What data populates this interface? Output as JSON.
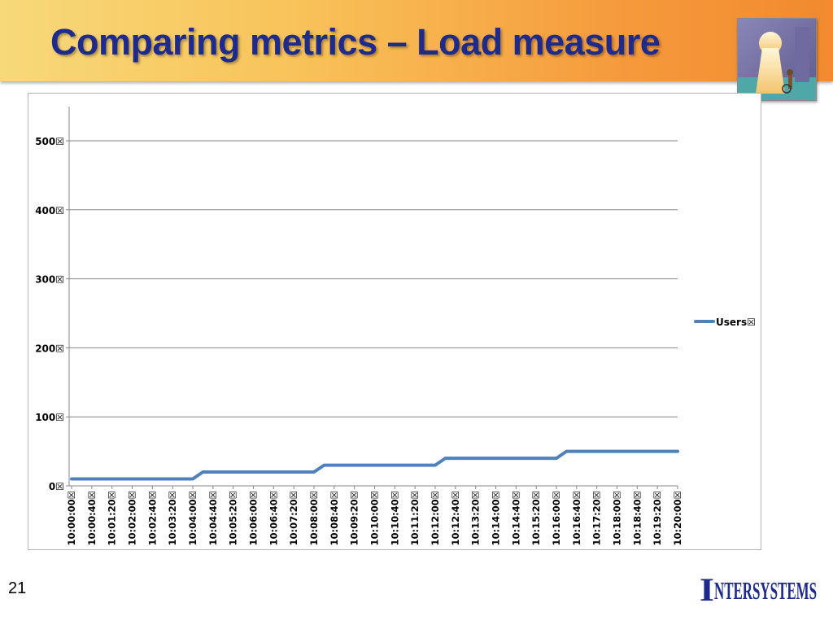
{
  "slide": {
    "title": "Comparing metrics – Load measure",
    "page_number": "21",
    "logo_text": "InterSystems"
  },
  "colors": {
    "series": "#4f81bd",
    "title": "#1e2a8c",
    "gridline": "#868686"
  },
  "chart_data": {
    "type": "line",
    "x": [
      "10:00:00",
      "10:00:40",
      "10:01:20",
      "10:02:00",
      "10:02:40",
      "10:03:20",
      "10:04:00",
      "10:04:40",
      "10:05:20",
      "10:06:00",
      "10:06:40",
      "10:07:20",
      "10:08:00",
      "10:08:40",
      "10:09:20",
      "10:10:00",
      "10:10:40",
      "10:11:20",
      "10:12:00",
      "10:12:40",
      "10:13:20",
      "10:14:00",
      "10:14:40",
      "10:15:20",
      "10:16:00",
      "10:16:40",
      "10:17:20",
      "10:18:00",
      "10:18:40",
      "10:19:20",
      "10:20:00"
    ],
    "x_tick_labels": [
      "10:00:00☒",
      "10:00:40☒",
      "10:01:20☒",
      "10:02:00☒",
      "10:02:40☒",
      "10:03:20☒",
      "10:04:00☒",
      "10:04:40☒",
      "10:05:20☒",
      "10:06:00☒",
      "10:06:40☒",
      "10:07:20☒",
      "10:08:00☒",
      "10:08:40☒",
      "10:09:20☒",
      "10:10:00☒",
      "10:10:40☒",
      "10:11:20☒",
      "10:12:00☒",
      "10:12:40☒",
      "10:13:20☒",
      "10:14:00☒",
      "10:14:40☒",
      "10:15:20☒",
      "10:16:00☒",
      "10:16:40☒",
      "10:17:20☒",
      "10:18:00☒",
      "10:18:40☒",
      "10:19:20☒",
      "10:20:00☒"
    ],
    "y_ticks": [
      0,
      100,
      200,
      300,
      400,
      500
    ],
    "y_tick_labels": [
      "0☒",
      "100☒",
      "200☒",
      "300☒",
      "400☒",
      "500☒"
    ],
    "ylim": [
      0,
      500
    ],
    "grid": true,
    "legend_position": "right",
    "series": [
      {
        "name": "Users",
        "legend_label": "Users☒",
        "points": [
          [
            "10:00:00",
            10
          ],
          [
            "10:04:00",
            10
          ],
          [
            "10:04:20",
            20
          ],
          [
            "10:08:00",
            20
          ],
          [
            "10:08:20",
            30
          ],
          [
            "10:12:00",
            30
          ],
          [
            "10:12:20",
            40
          ],
          [
            "10:16:00",
            40
          ],
          [
            "10:16:20",
            50
          ],
          [
            "10:20:00",
            50
          ]
        ]
      }
    ]
  }
}
